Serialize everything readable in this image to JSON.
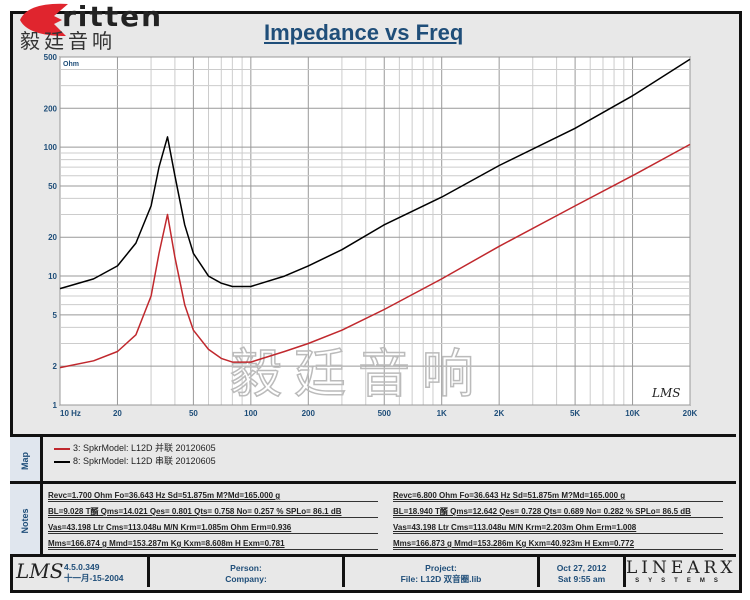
{
  "logo": {
    "en": "ritten",
    "cn": "毅廷音响",
    "watermark": "毅廷音响"
  },
  "chart_data": {
    "type": "line",
    "title": "Impedance vs Freq",
    "ylabel": "Ohm",
    "xscale": "log",
    "yscale": "log",
    "xlim": [
      10,
      20000
    ],
    "ylim": [
      1,
      500
    ],
    "grid": true,
    "x_ticks": [
      {
        "v": 10,
        "l": "10 Hz"
      },
      {
        "v": 20,
        "l": "20"
      },
      {
        "v": 50,
        "l": "50"
      },
      {
        "v": 100,
        "l": "100"
      },
      {
        "v": 200,
        "l": "200"
      },
      {
        "v": 500,
        "l": "500"
      },
      {
        "v": 1000,
        "l": "1K"
      },
      {
        "v": 2000,
        "l": "2K"
      },
      {
        "v": 5000,
        "l": "5K"
      },
      {
        "v": 10000,
        "l": "10K"
      },
      {
        "v": 20000,
        "l": "20K"
      }
    ],
    "y_ticks": [
      {
        "v": 500,
        "l": "500"
      },
      {
        "v": 200,
        "l": "200"
      },
      {
        "v": 100,
        "l": "100"
      },
      {
        "v": 50,
        "l": "50"
      },
      {
        "v": 20,
        "l": "20"
      },
      {
        "v": 10,
        "l": "10"
      },
      {
        "v": 5,
        "l": "5"
      },
      {
        "v": 2,
        "l": "2"
      },
      {
        "v": 1,
        "l": "1"
      }
    ],
    "x": [
      10,
      15,
      20,
      25,
      30,
      33,
      36.6,
      40,
      45,
      50,
      60,
      70,
      80,
      100,
      150,
      200,
      300,
      500,
      1000,
      2000,
      5000,
      10000,
      20000
    ],
    "series": [
      {
        "name": "8: SpkrModel: L12D  串联 20120605",
        "color": "#000000",
        "values": [
          8,
          9.5,
          12,
          18,
          35,
          70,
          120,
          60,
          25,
          15,
          10,
          8.8,
          8.3,
          8.3,
          10,
          12,
          16,
          25,
          41,
          72,
          140,
          250,
          480
        ]
      },
      {
        "name": "3: SpkrModel: L12D 并联 20120605",
        "color": "#c0282d",
        "values": [
          1.95,
          2.2,
          2.6,
          3.5,
          7,
          15,
          30,
          14,
          6,
          3.8,
          2.7,
          2.3,
          2.15,
          2.15,
          2.6,
          3,
          3.8,
          5.5,
          9.5,
          17,
          35,
          60,
          105
        ]
      }
    ],
    "annotation": "LMS"
  },
  "map": {
    "label": "Map",
    "items": [
      {
        "text": "3: SpkrModel: L12D 并联 20120605",
        "color": "#c0282d"
      },
      {
        "text": "8: SpkrModel: L12D  串联 20120605",
        "color": "#000000"
      }
    ]
  },
  "notes": {
    "label": "Notes",
    "left": [
      "Revc=1.700 Ohm  Fo=36.643 Hz  Sd=51.875m M?Md=165.000 g",
      "BL=9.028 T醑  Qms=14.021  Qes= 0.801  Qts= 0.758  No= 0.257 %  SPLo= 86.1 dB",
      "Vas=43.198 Ltr  Cms=113.048u M/N  Krm=1.085m Ohm  Erm=0.936",
      "Mms=166.874 g  Mmd=153.287m Kg  Kxm=8.608m H  Exm=0.781"
    ],
    "right": [
      "Revc=6.800 Ohm  Fo=36.643 Hz  Sd=51.875m M?Md=165.000 g",
      "BL=18.940 T醑  Qms=12.642  Qes= 0.728  Qts= 0.689  No= 0.282 %  SPLo= 86.5 dB",
      "Vas=43.198 Ltr  Cms=113.048u M/N  Krm=2.203m Ohm  Erm=1.008",
      "Mms=166.873 g  Mmd=153.286m Kg  Kxm=40.923m H  Exm=0.772"
    ]
  },
  "footer": {
    "logo": "LMS",
    "version": "4.5.0.349",
    "date": "十一月-15-2004",
    "person": "Person:",
    "company": "Company:",
    "project": "Project:",
    "file": "File: L12D 双音圈.lib",
    "dt1": "Oct 27, 2012",
    "dt2": "Sat  9:55 am",
    "brand": "LINEARX",
    "brand_sub": "SYSTEMS"
  }
}
